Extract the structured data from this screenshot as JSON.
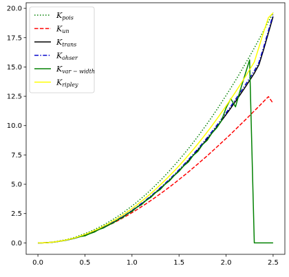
{
  "chart_data": {
    "type": "line",
    "title": "",
    "xlabel": "",
    "ylabel": "",
    "xlim": [
      -0.125,
      2.625
    ],
    "ylim": [
      -0.975,
      20.475
    ],
    "x_ticks": [
      0.0,
      0.5,
      1.0,
      1.5,
      2.0,
      2.5
    ],
    "x_tick_labels": [
      "0.0",
      "0.5",
      "1.0",
      "1.5",
      "2.0",
      "2.5"
    ],
    "y_ticks": [
      0.0,
      2.5,
      5.0,
      7.5,
      10.0,
      12.5,
      15.0,
      17.5,
      20.0
    ],
    "y_tick_labels": [
      "0.0",
      "2.5",
      "5.0",
      "7.5",
      "10.0",
      "12.5",
      "15.0",
      "17.5",
      "20.0"
    ],
    "grid": false,
    "legend_position": "top-left",
    "x": [
      0.0,
      0.05,
      0.1,
      0.15,
      0.2,
      0.25,
      0.3,
      0.35,
      0.4,
      0.45,
      0.5,
      0.55,
      0.6,
      0.65,
      0.7,
      0.75,
      0.8,
      0.85,
      0.9,
      0.95,
      1.0,
      1.05,
      1.1,
      1.15,
      1.2,
      1.25,
      1.3,
      1.35,
      1.4,
      1.45,
      1.5,
      1.55,
      1.6,
      1.65,
      1.7,
      1.75,
      1.8,
      1.85,
      1.9,
      1.95,
      2.0,
      2.05,
      2.1,
      2.15,
      2.2,
      2.25,
      2.3,
      2.35,
      2.4,
      2.45,
      2.5
    ],
    "series": [
      {
        "name": "K_pois",
        "label_main": "K",
        "label_sub": "pois",
        "color": "#008000",
        "dash": "dotted",
        "values": [
          0.0,
          0.01,
          0.03,
          0.07,
          0.13,
          0.2,
          0.28,
          0.38,
          0.5,
          0.64,
          0.79,
          0.95,
          1.13,
          1.33,
          1.54,
          1.77,
          2.01,
          2.27,
          2.54,
          2.84,
          3.14,
          3.46,
          3.8,
          4.15,
          4.52,
          4.91,
          5.31,
          5.73,
          6.16,
          6.61,
          7.07,
          7.55,
          8.04,
          8.55,
          9.08,
          9.62,
          10.18,
          10.75,
          11.34,
          11.95,
          12.57,
          13.2,
          13.85,
          14.52,
          15.21,
          15.9,
          16.62,
          17.35,
          18.1,
          18.86,
          19.63
        ]
      },
      {
        "name": "K_un",
        "label_main": "K",
        "label_sub": "un",
        "color": "#ff0000",
        "dash": "dashed",
        "values": [
          0.0,
          0.01,
          0.02,
          0.06,
          0.11,
          0.17,
          0.24,
          0.33,
          0.44,
          0.55,
          0.68,
          0.82,
          0.97,
          1.14,
          1.31,
          1.5,
          1.69,
          1.9,
          2.12,
          2.34,
          2.58,
          2.82,
          3.08,
          3.34,
          3.61,
          3.89,
          4.18,
          4.47,
          4.77,
          5.08,
          5.4,
          5.72,
          6.05,
          6.39,
          6.73,
          7.08,
          7.43,
          7.79,
          8.16,
          8.53,
          8.9,
          9.28,
          9.67,
          10.06,
          10.45,
          10.85,
          11.25,
          11.65,
          12.06,
          12.47,
          11.9
        ]
      },
      {
        "name": "K_trans",
        "label_main": "K",
        "label_sub": "trans",
        "color": "#000000",
        "dash": "solid",
        "values": [
          0.0,
          0.0,
          0.02,
          0.05,
          0.1,
          0.16,
          0.23,
          0.32,
          0.42,
          0.54,
          0.67,
          0.82,
          0.98,
          1.15,
          1.33,
          1.53,
          1.75,
          1.97,
          2.21,
          2.47,
          2.74,
          3.02,
          3.31,
          3.62,
          3.94,
          4.28,
          4.63,
          4.99,
          5.36,
          5.75,
          6.16,
          6.57,
          7.0,
          7.45,
          7.91,
          8.38,
          8.86,
          9.36,
          9.87,
          10.4,
          10.94,
          11.49,
          12.06,
          12.64,
          13.23,
          13.84,
          14.46,
          15.2,
          16.5,
          17.9,
          19.3
        ]
      },
      {
        "name": "K_ohser",
        "label_main": "K",
        "label_sub": "ohser",
        "color": "#0000cc",
        "dash": "dashdot",
        "values": [
          0.0,
          0.0,
          0.02,
          0.05,
          0.1,
          0.16,
          0.23,
          0.32,
          0.42,
          0.54,
          0.68,
          0.83,
          0.99,
          1.16,
          1.35,
          1.55,
          1.77,
          2.0,
          2.24,
          2.5,
          2.77,
          3.06,
          3.36,
          3.67,
          4.0,
          4.34,
          4.69,
          5.06,
          5.44,
          5.83,
          6.24,
          6.66,
          7.1,
          7.55,
          8.01,
          8.49,
          8.98,
          9.49,
          10.01,
          10.54,
          11.09,
          11.65,
          12.23,
          12.82,
          13.42,
          14.04,
          14.67,
          15.4,
          16.7,
          18.1,
          19.45
        ]
      },
      {
        "name": "K_var-width",
        "label_main": "K",
        "label_sub": "var − width",
        "color": "#008000",
        "dash": "solid",
        "values": [
          0.0,
          0.0,
          0.02,
          0.05,
          0.1,
          0.16,
          0.23,
          0.32,
          0.42,
          0.54,
          0.6,
          0.78,
          0.92,
          1.15,
          1.28,
          1.52,
          1.7,
          1.97,
          2.15,
          2.47,
          2.68,
          3.02,
          3.25,
          3.62,
          3.88,
          4.28,
          4.55,
          4.99,
          5.3,
          5.75,
          6.1,
          6.57,
          6.9,
          7.45,
          7.8,
          8.38,
          8.75,
          9.36,
          9.8,
          10.4,
          11.5,
          12.3,
          11.6,
          13.0,
          14.3,
          15.6,
          0.0,
          0.0,
          0.0,
          0.0,
          0.0
        ]
      },
      {
        "name": "K_ripley",
        "label_main": "K",
        "label_sub": "ripley",
        "color": "#ffff00",
        "dash": "solid",
        "values": [
          0.0,
          0.0,
          0.02,
          0.06,
          0.11,
          0.17,
          0.25,
          0.34,
          0.45,
          0.58,
          0.72,
          0.88,
          1.05,
          1.23,
          1.43,
          1.64,
          1.87,
          2.11,
          2.37,
          2.64,
          2.92,
          3.22,
          3.54,
          3.87,
          4.21,
          4.57,
          4.94,
          5.33,
          5.73,
          6.14,
          6.57,
          7.02,
          7.48,
          7.95,
          8.44,
          8.94,
          9.46,
          9.99,
          10.54,
          11.1,
          11.67,
          12.26,
          12.86,
          13.48,
          14.11,
          14.76,
          15.42,
          16.7,
          18.0,
          19.2,
          19.6
        ]
      }
    ]
  }
}
